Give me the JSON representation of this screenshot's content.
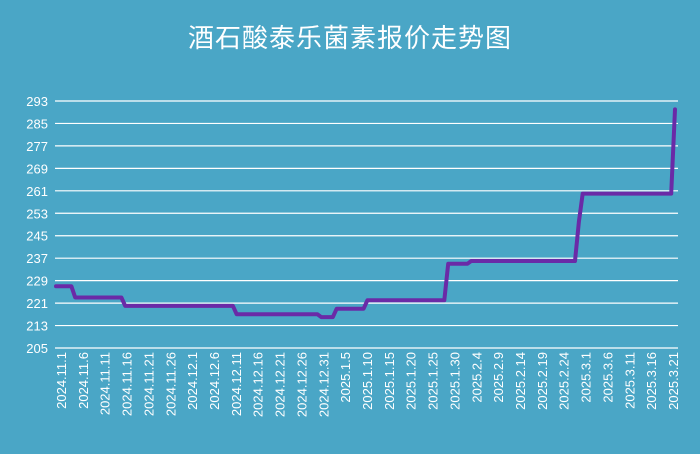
{
  "chart_data": {
    "type": "line",
    "title": "酒石酸泰乐菌素报价走势图",
    "xlabel": "",
    "ylabel": "",
    "ylim": [
      205,
      293
    ],
    "yticks": [
      205,
      213,
      221,
      229,
      237,
      245,
      253,
      261,
      269,
      277,
      285,
      293
    ],
    "grid": true,
    "line_color": "#6a2aa7",
    "background_color": "#4aa6c6",
    "x_tick_labels": [
      "2024.11.1",
      "2024.11.6",
      "2024.11.11",
      "2024.11.16",
      "2024.11.21",
      "2024.11.26",
      "2024.12.1",
      "2024.12.6",
      "2024.12.11",
      "2024.12.16",
      "2024.12.21",
      "2024.12.26",
      "2024.12.31",
      "2025.1.5",
      "2025.1.10",
      "2025.1.15",
      "2025.1.20",
      "2025.1.25",
      "2025.1.30",
      "2025.2.4",
      "2025.2.9",
      "2025.2.14",
      "2025.2.19",
      "2025.2.24",
      "2025.3.1",
      "2025.3.6",
      "2025.3.11",
      "2025.3.16",
      "2025.3.21"
    ],
    "series": [
      {
        "values": [
          227,
          227,
          227,
          227,
          227,
          223,
          223,
          223,
          223,
          223,
          223,
          223,
          223,
          223,
          223,
          223,
          223,
          223,
          220,
          220,
          220,
          220,
          220,
          220,
          220,
          220,
          220,
          220,
          220,
          220,
          220,
          220,
          220,
          220,
          220,
          220,
          220,
          220,
          220,
          220,
          220,
          220,
          220,
          220,
          220,
          220,
          220,
          217,
          217,
          217,
          217,
          217,
          217,
          217,
          217,
          217,
          217,
          217,
          217,
          217,
          217,
          217,
          217,
          217,
          217,
          217,
          217,
          217,
          217,
          216,
          216,
          216,
          216,
          219,
          219,
          219,
          219,
          219,
          219,
          219,
          219,
          222,
          222,
          222,
          222,
          222,
          222,
          222,
          222,
          222,
          222,
          222,
          222,
          222,
          222,
          222,
          222,
          222,
          222,
          222,
          222,
          222,
          235,
          235,
          235,
          235,
          235,
          235,
          236,
          236,
          236,
          236,
          236,
          236,
          236,
          236,
          236,
          236,
          236,
          236,
          236,
          236,
          236,
          236,
          236,
          236,
          236,
          236,
          236,
          236,
          236,
          236,
          236,
          236,
          236,
          236,
          250,
          260,
          260,
          260,
          260,
          260,
          260,
          260,
          260,
          260,
          260,
          260,
          260,
          260,
          260,
          260,
          260,
          260,
          260,
          260,
          260,
          260,
          260,
          260,
          260,
          290
        ]
      }
    ]
  }
}
